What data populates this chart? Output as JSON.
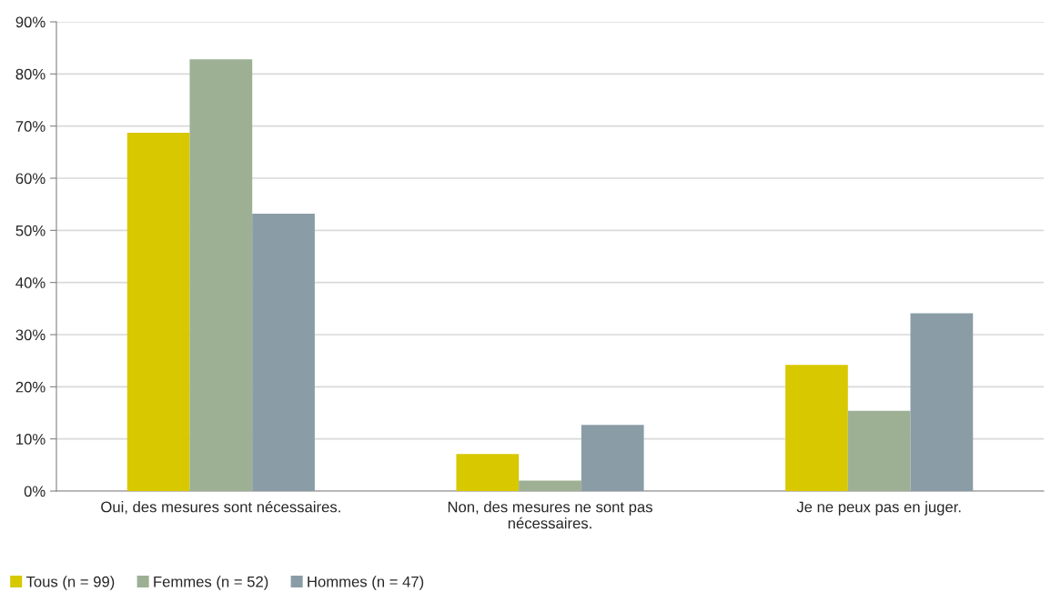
{
  "chart_data": {
    "type": "bar",
    "categories": [
      "Oui, des mesures sont nécessaires.",
      "Non, des mesures ne sont pas\nnécessaires.",
      "Je ne peux pas en juger."
    ],
    "series": [
      {
        "name": "Tous (n = 99)",
        "color": "#d7c800",
        "values": [
          68.7,
          7.1,
          24.2
        ]
      },
      {
        "name": "Femmes (n = 52)",
        "color": "#9db094",
        "values": [
          82.8,
          2.0,
          15.4
        ]
      },
      {
        "name": "Hommes (n = 47)",
        "color": "#8a9ca6",
        "values": [
          53.2,
          12.7,
          34.1
        ]
      }
    ],
    "ylim": [
      0,
      90
    ],
    "yticks": [
      {
        "value": 0,
        "label": "0%"
      },
      {
        "value": 10,
        "label": "10%"
      },
      {
        "value": 20,
        "label": "20%"
      },
      {
        "value": 30,
        "label": "30%"
      },
      {
        "value": 40,
        "label": "40%"
      },
      {
        "value": 50,
        "label": "50%"
      },
      {
        "value": 60,
        "label": "60%"
      },
      {
        "value": 70,
        "label": "70%"
      },
      {
        "value": 80,
        "label": "80%"
      },
      {
        "value": 90,
        "label": "90%"
      }
    ],
    "grid": "y",
    "legend": "bottom left"
  }
}
